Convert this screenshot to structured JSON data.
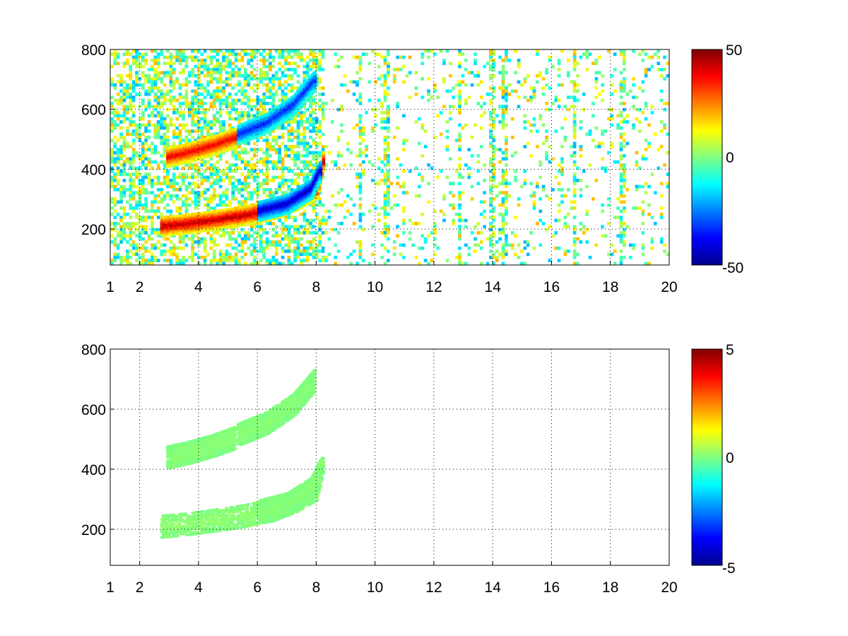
{
  "chart_data": [
    {
      "type": "heatmap",
      "title": "",
      "xlabel": "",
      "ylabel": "",
      "xlim": [
        1,
        20
      ],
      "ylim": [
        80,
        800
      ],
      "xticks": [
        1,
        2,
        4,
        6,
        8,
        10,
        12,
        14,
        16,
        18,
        20
      ],
      "yticks": [
        200,
        400,
        600,
        800
      ],
      "grid": true,
      "colormap": "jet",
      "clim": [
        -50,
        50
      ],
      "colorbar_ticks": [
        50,
        0,
        -50
      ],
      "structures": [
        {
          "x": [
            2.7,
            3.5,
            4.5,
            5.5,
            6.5,
            7.3,
            8.0,
            8.2
          ],
          "y": [
            215,
            222,
            235,
            250,
            270,
            300,
            340,
            430
          ],
          "value": 45
        },
        {
          "x": [
            6.0,
            7.0,
            7.8,
            8.1
          ],
          "y": [
            265,
            290,
            340,
            400
          ],
          "value": -45
        },
        {
          "x": [
            2.9,
            3.6,
            4.5,
            5.2
          ],
          "y": [
            445,
            460,
            485,
            510
          ],
          "value": 40
        },
        {
          "x": [
            5.3,
            6.3,
            7.2,
            7.9
          ],
          "y": [
            520,
            560,
            620,
            700
          ],
          "value": -35
        }
      ],
      "vertical_streak_x": [
        9.5,
        10.4,
        12.9,
        14.0,
        14.4,
        16.8,
        18.4
      ]
    },
    {
      "type": "heatmap",
      "title": "",
      "xlabel": "",
      "ylabel": "",
      "xlim": [
        1,
        20
      ],
      "ylim": [
        80,
        800
      ],
      "xticks": [
        1,
        2,
        4,
        6,
        8,
        10,
        12,
        14,
        16,
        18,
        20
      ],
      "yticks": [
        200,
        400,
        600,
        800
      ],
      "grid": true,
      "colormap": "jet",
      "clim": [
        -5,
        5
      ],
      "colorbar_ticks": [
        5,
        0,
        -5
      ],
      "structures": [
        {
          "x": [
            2.7,
            3.5,
            4.5,
            5.5,
            6.5,
            7.3,
            8.0,
            8.2
          ],
          "y": [
            215,
            222,
            235,
            250,
            270,
            300,
            340,
            430
          ],
          "value": 0.5
        },
        {
          "x": [
            6.0,
            7.0,
            7.8,
            8.1
          ],
          "y": [
            265,
            290,
            340,
            400
          ],
          "value": 0.3
        },
        {
          "x": [
            2.9,
            3.6,
            4.5,
            5.2
          ],
          "y": [
            445,
            460,
            485,
            510
          ],
          "value": 0.4
        },
        {
          "x": [
            5.3,
            6.3,
            7.2,
            7.9
          ],
          "y": [
            520,
            560,
            620,
            700
          ],
          "value": 0.3
        }
      ]
    }
  ]
}
